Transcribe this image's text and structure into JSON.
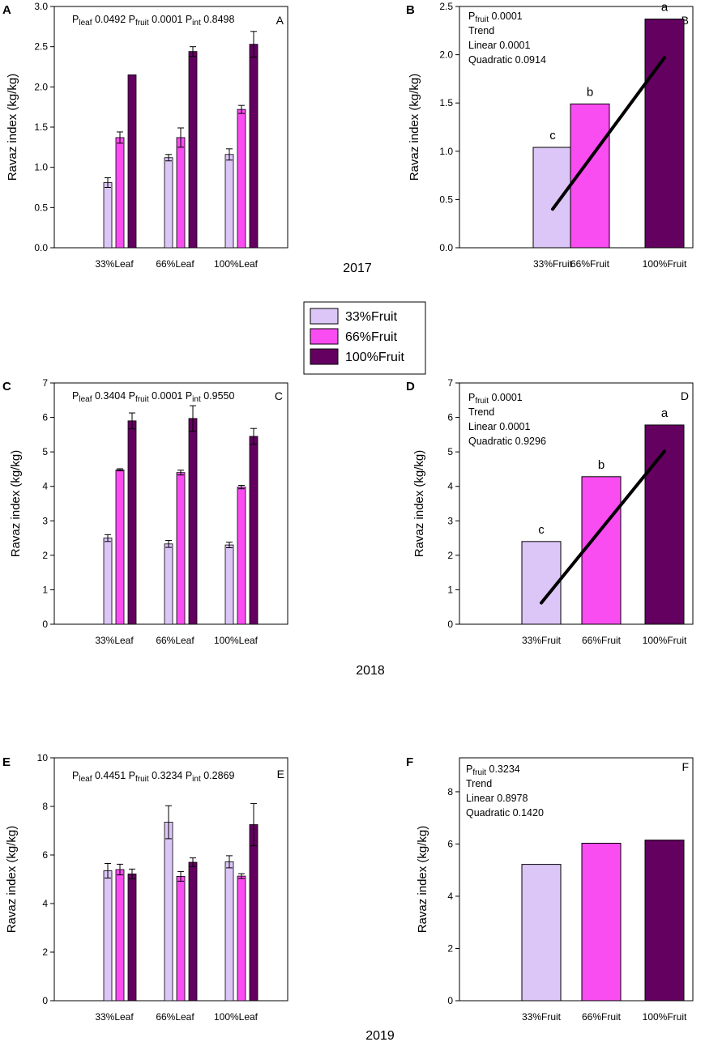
{
  "colors": {
    "c33": "#dcc6f7",
    "c66": "#f94cf1",
    "c100": "#630060",
    "axis": "#000000"
  },
  "legend": {
    "items": [
      {
        "label": "33%Fruit",
        "color": "#dcc6f7"
      },
      {
        "label": "66%Fruit",
        "color": "#f94cf1"
      },
      {
        "label": "100%Fruit",
        "color": "#630060"
      }
    ]
  },
  "years": [
    "2017",
    "2018",
    "2019"
  ],
  "chart_data": [
    {
      "id": "A",
      "letter": "A",
      "corner": "A",
      "type": "bar",
      "ylabel": "Ravaz index (kg/kg)",
      "ylim": [
        0,
        3
      ],
      "yticks": [
        0,
        0.5,
        1,
        1.5,
        2,
        2.5,
        3
      ],
      "ytick_labels": [
        "0.0",
        "0.5",
        "1.0",
        "1.5",
        "2.0",
        "2.5",
        "3.0"
      ],
      "categories": [
        "33%Leaf",
        "66%Leaf",
        "100%Leaf"
      ],
      "series": [
        {
          "name": "33%Fruit",
          "values": [
            0.81,
            1.12,
            1.16
          ],
          "errors": [
            0.06,
            0.04,
            0.07
          ]
        },
        {
          "name": "66%Fruit",
          "values": [
            1.37,
            1.37,
            1.72
          ],
          "errors": [
            0.07,
            0.12,
            0.05
          ]
        },
        {
          "name": "100%Fruit",
          "values": [
            2.15,
            2.44,
            2.53
          ],
          "errors": [
            0.0,
            0.06,
            0.16
          ]
        }
      ],
      "annotation": [
        [
          {
            "t": "P"
          },
          {
            "t": "leaf",
            "sub": true
          },
          {
            "t": " 0.0492 P"
          },
          {
            "t": "fruit",
            "sub": true
          },
          {
            "t": " 0.0001  P"
          },
          {
            "t": "int",
            "sub": true
          },
          {
            "t": " 0.8498"
          }
        ]
      ]
    },
    {
      "id": "B",
      "letter": "B",
      "corner": "B",
      "type": "bar",
      "ylabel": "Ravaz index (kg/kg)",
      "ylim": [
        0,
        2.5
      ],
      "yticks": [
        0,
        0.5,
        1,
        1.5,
        2,
        2.5
      ],
      "ytick_labels": [
        "0.0",
        "0.5",
        "1.0",
        "1.5",
        "2.0",
        "2.5"
      ],
      "categories": [
        "33%Fruit",
        "66%Fruit",
        "100%Fruit"
      ],
      "values": [
        1.04,
        1.49,
        2.37
      ],
      "significance": [
        "c",
        "b",
        "a"
      ],
      "trend_line": {
        "from": 0.4,
        "to": 1.97
      },
      "annotation": [
        [
          {
            "t": "P"
          },
          {
            "t": "fruit",
            "sub": true
          },
          {
            "t": " 0.0001"
          }
        ],
        [
          {
            "t": "Trend"
          }
        ],
        [
          {
            "t": "Linear 0.0001"
          }
        ],
        [
          {
            "t": "Quadratic 0.0914"
          }
        ]
      ]
    },
    {
      "id": "C",
      "letter": "C",
      "corner": "C",
      "type": "bar",
      "ylabel": "Ravaz index (kg/kg)",
      "ylim": [
        0,
        7
      ],
      "yticks": [
        0,
        1,
        2,
        3,
        4,
        5,
        6,
        7
      ],
      "ytick_labels": [
        "0",
        "1",
        "2",
        "3",
        "4",
        "5",
        "6",
        "7"
      ],
      "categories": [
        "33%Leaf",
        "66%Leaf",
        "100%Leaf"
      ],
      "series": [
        {
          "name": "33%Fruit",
          "values": [
            2.5,
            2.33,
            2.3
          ],
          "errors": [
            0.1,
            0.1,
            0.08
          ]
        },
        {
          "name": "66%Fruit",
          "values": [
            4.48,
            4.4,
            3.98
          ],
          "errors": [
            0.03,
            0.07,
            0.05
          ]
        },
        {
          "name": "100%Fruit",
          "values": [
            5.9,
            5.97,
            5.45
          ],
          "errors": [
            0.23,
            0.37,
            0.23
          ]
        }
      ],
      "annotation": [
        [
          {
            "t": "P"
          },
          {
            "t": "leaf",
            "sub": true
          },
          {
            "t": " 0.3404 P"
          },
          {
            "t": "fruit",
            "sub": true
          },
          {
            "t": " 0.0001  P"
          },
          {
            "t": "int",
            "sub": true
          },
          {
            "t": " 0.9550"
          }
        ]
      ]
    },
    {
      "id": "D",
      "letter": "D",
      "corner": "D",
      "type": "bar",
      "ylabel": "Ravaz index (kg/kg)",
      "ylim": [
        0,
        7
      ],
      "yticks": [
        0,
        1,
        2,
        3,
        4,
        5,
        6,
        7
      ],
      "ytick_labels": [
        "0",
        "1",
        "2",
        "3",
        "4",
        "5",
        "6",
        "7"
      ],
      "categories": [
        "33%Fruit",
        "66%Fruit",
        "100%Fruit"
      ],
      "values": [
        2.4,
        4.28,
        5.78
      ],
      "significance": [
        "c",
        "b",
        "a"
      ],
      "trend_line": {
        "from": 0.62,
        "to": 5.02
      },
      "annotation": [
        [
          {
            "t": "P"
          },
          {
            "t": "fruit",
            "sub": true
          },
          {
            "t": " 0.0001"
          }
        ],
        [
          {
            "t": "Trend"
          }
        ],
        [
          {
            "t": "Linear 0.0001"
          }
        ],
        [
          {
            "t": "Quadratic 0.9296"
          }
        ]
      ]
    },
    {
      "id": "E",
      "letter": "E",
      "corner": "E",
      "type": "bar",
      "ylabel": "Ravaz index (kg/kg)",
      "ylim": [
        0,
        10
      ],
      "yticks": [
        0,
        2,
        4,
        6,
        8,
        10
      ],
      "ytick_labels": [
        "0",
        "2",
        "4",
        "6",
        "8",
        "10"
      ],
      "categories": [
        "33%Leaf",
        "66%Leaf",
        "100%Leaf"
      ],
      "series": [
        {
          "name": "33%Fruit",
          "values": [
            5.35,
            7.35,
            5.72
          ],
          "errors": [
            0.3,
            0.68,
            0.25
          ]
        },
        {
          "name": "66%Fruit",
          "values": [
            5.4,
            5.12,
            5.13
          ],
          "errors": [
            0.22,
            0.2,
            0.1
          ]
        },
        {
          "name": "100%Fruit",
          "values": [
            5.22,
            5.7,
            7.25
          ],
          "errors": [
            0.2,
            0.18,
            0.87
          ]
        }
      ],
      "annotation": [
        [
          {
            "t": "P"
          },
          {
            "t": "leaf",
            "sub": true
          },
          {
            "t": " 0.4451 P"
          },
          {
            "t": "fruit",
            "sub": true
          },
          {
            "t": " 0.3234  P"
          },
          {
            "t": "int",
            "sub": true
          },
          {
            "t": " 0.2869"
          }
        ]
      ]
    },
    {
      "id": "F",
      "letter": "F",
      "corner": "F",
      "type": "bar",
      "ylabel": "Ravaz index (kg/kg)",
      "ylim": [
        0,
        9.3
      ],
      "yticks": [
        0,
        2,
        4,
        6,
        8
      ],
      "ytick_labels": [
        "0",
        "2",
        "4",
        "6",
        "8"
      ],
      "categories": [
        "33%Fruit",
        "66%Fruit",
        "100%Fruit"
      ],
      "values": [
        5.22,
        6.03,
        6.15
      ],
      "annotation": [
        [
          {
            "t": "P"
          },
          {
            "t": "fruit",
            "sub": true
          },
          {
            "t": " 0.3234"
          }
        ],
        [
          {
            "t": "Trend"
          }
        ],
        [
          {
            "t": "Linear 0.8978"
          }
        ],
        [
          {
            "t": "Quadratic 0.1420"
          }
        ]
      ]
    }
  ]
}
